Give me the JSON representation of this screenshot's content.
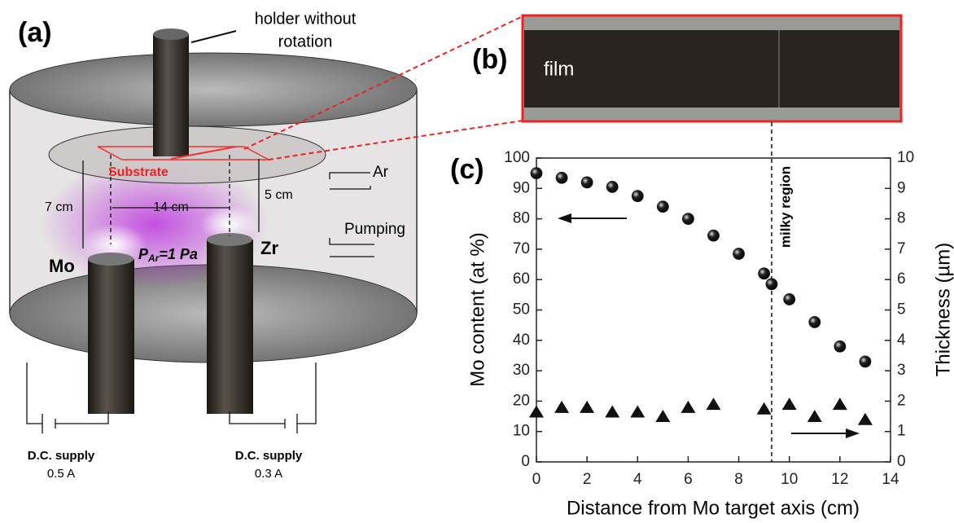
{
  "diagram": {
    "label": "(a)",
    "holder": [
      "holder without",
      "rotation"
    ],
    "substrate": "Substrate",
    "dist_vertical_left": "7 cm",
    "dist_horizontal": "14 cm",
    "dist_vertical_right": "5 cm",
    "gas_in": "Ar",
    "gas_out": "Pumping",
    "target_left": "Mo",
    "target_right": "Zr",
    "pressure": {
      "symbol": "P",
      "subscript": "Ar",
      "value": "=1 Pa"
    },
    "supply_left": {
      "name": "D.C. supply",
      "current": "0.5 A"
    },
    "supply_right": {
      "name": "D.C. supply",
      "current": "0.3 A"
    }
  },
  "photo": {
    "label": "(b)",
    "text": "film"
  },
  "chart_data": {
    "type": "scatter",
    "label": "(c)",
    "xlabel": "Distance from Mo target axis (cm)",
    "ylabel": "Mo content (at %)",
    "y2label": "Thickness (µm)",
    "xlim": [
      0,
      14
    ],
    "xticks": [
      0,
      2,
      4,
      6,
      8,
      10,
      12,
      14
    ],
    "ylim": [
      0,
      100
    ],
    "yticks": [
      0,
      10,
      20,
      30,
      40,
      50,
      60,
      70,
      80,
      90,
      100
    ],
    "y2lim": [
      0,
      10
    ],
    "y2ticks": [
      0,
      1,
      2,
      3,
      4,
      5,
      6,
      7,
      8,
      9,
      10
    ],
    "annotations": [
      {
        "text": "milky region",
        "x": 9.3
      }
    ],
    "series": [
      {
        "marker": "circle",
        "color": "#1a1a1a",
        "x": [
          0,
          1,
          2,
          3,
          4,
          5,
          6,
          7,
          8,
          9,
          9.3,
          10,
          11,
          12,
          13
        ],
        "values": [
          95,
          93.5,
          92,
          90.5,
          87.5,
          84,
          80,
          74.5,
          68.5,
          62,
          58.5,
          53.5,
          46,
          38,
          33
        ]
      },
      {
        "marker": "triangle",
        "color": "#111111",
        "axis": "y2",
        "x": [
          0,
          1,
          2,
          3,
          4,
          5,
          6,
          7,
          9,
          10,
          11,
          12,
          13
        ],
        "values": [
          1.65,
          1.8,
          1.8,
          1.65,
          1.65,
          1.5,
          1.8,
          1.9,
          1.75,
          1.9,
          1.5,
          1.9,
          1.4
        ]
      }
    ]
  }
}
